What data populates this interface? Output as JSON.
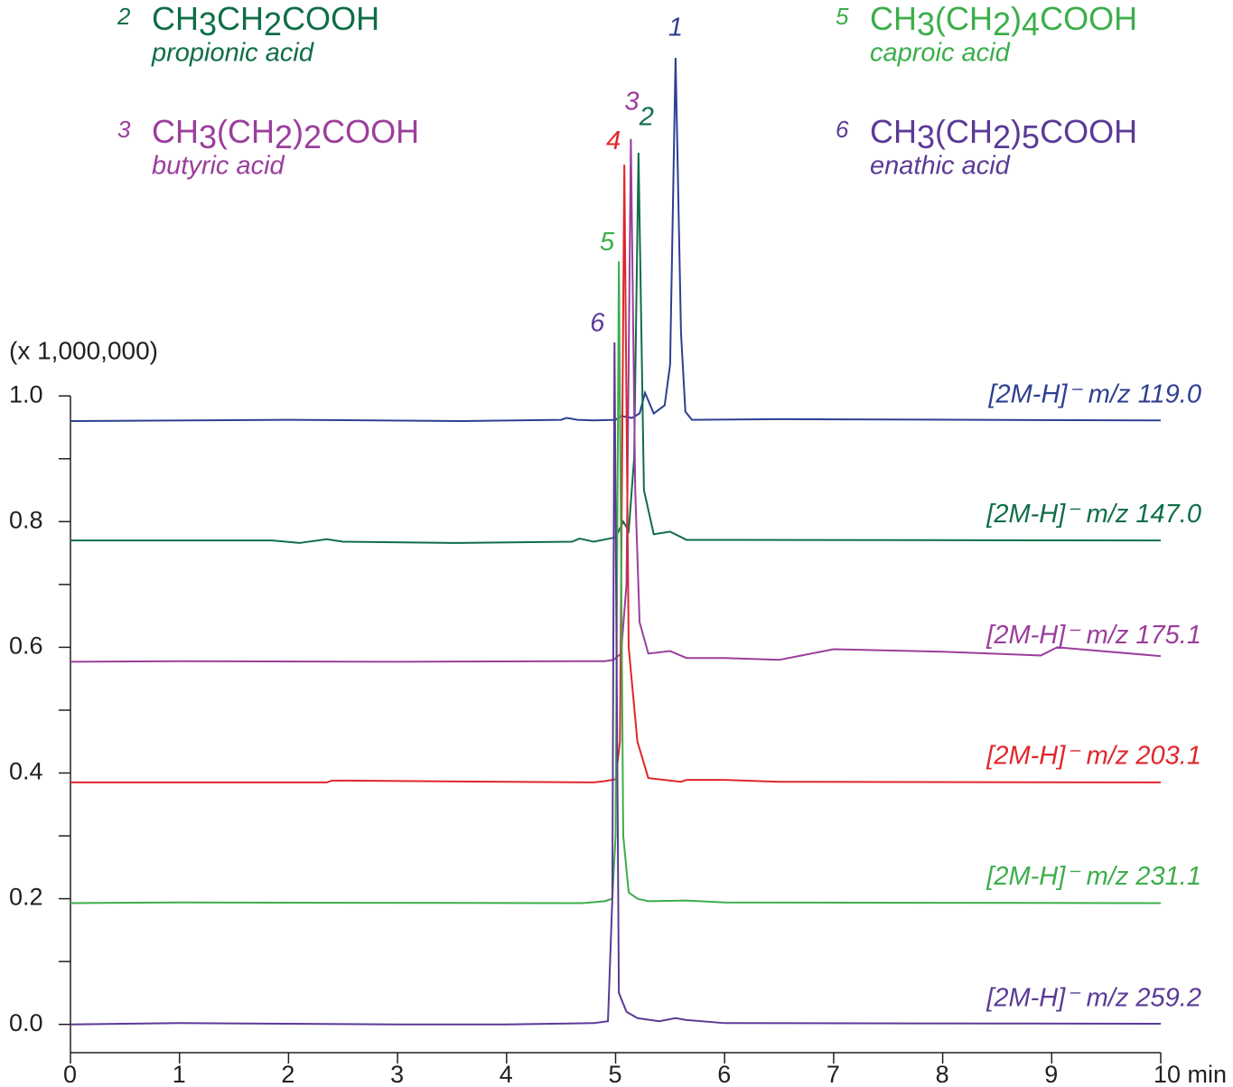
{
  "chart_data": {
    "type": "line",
    "y_label": "(x 1,000,000)",
    "xlim": [
      0,
      10
    ],
    "xticks": [
      0,
      1,
      2,
      3,
      4,
      5,
      6,
      7,
      8,
      9,
      {
        "value": 10,
        "label": "10 min"
      }
    ],
    "ylim": [
      -0.045,
      1.63
    ],
    "yticks": [
      {
        "value": 0,
        "label": "0.0"
      },
      0.2,
      0.4,
      0.6,
      0.8,
      {
        "value": 1,
        "label": "1.0"
      }
    ],
    "yticks_minor": [
      0.1,
      0.3,
      0.5,
      0.7,
      0.9
    ],
    "series": [
      {
        "name": "[2M-H]⁻ m/z 119.0",
        "peak_label": "1",
        "color": "#2e3f92",
        "x": [
          0,
          2,
          3.6,
          4.5,
          4.55,
          4.65,
          4.8,
          5.0,
          5.05,
          5.15,
          5.22,
          5.27,
          5.35,
          5.45,
          5.5,
          5.55,
          5.6,
          5.64,
          5.7,
          6.5,
          10
        ],
        "values": [
          0.96,
          0.962,
          0.96,
          0.962,
          0.965,
          0.962,
          0.961,
          0.962,
          0.968,
          0.965,
          0.972,
          1.005,
          0.972,
          0.985,
          1.05,
          1.538,
          1.1,
          0.975,
          0.962,
          0.963,
          0.961
        ]
      },
      {
        "name": "[2M-H]⁻ m/z 147.0",
        "peak_label": "2",
        "color": "#0f6e47",
        "x": [
          0,
          1.85,
          2.1,
          2.35,
          2.5,
          3.5,
          4.6,
          4.67,
          4.8,
          5.0,
          5.07,
          5.12,
          5.17,
          5.21,
          5.26,
          5.35,
          5.5,
          5.65,
          6,
          10
        ],
        "values": [
          0.77,
          0.77,
          0.766,
          0.772,
          0.768,
          0.766,
          0.768,
          0.773,
          0.768,
          0.775,
          0.8,
          0.785,
          0.9,
          1.387,
          0.85,
          0.78,
          0.784,
          0.771,
          0.771,
          0.77
        ]
      },
      {
        "name": "[2M-H]⁻ m/z 175.1",
        "peak_label": "3",
        "color": "#9b3e9c",
        "x": [
          0,
          1,
          3,
          4.9,
          4.98,
          5.05,
          5.1,
          5.14,
          5.18,
          5.22,
          5.3,
          5.5,
          5.65,
          6,
          6.5,
          7,
          8,
          8.9,
          9.05,
          10
        ],
        "values": [
          0.577,
          0.578,
          0.577,
          0.578,
          0.58,
          0.59,
          0.7,
          1.409,
          0.85,
          0.64,
          0.59,
          0.594,
          0.583,
          0.583,
          0.58,
          0.597,
          0.593,
          0.587,
          0.6,
          0.586
        ]
      },
      {
        "name": "[2M-H]⁻ m/z 203.1",
        "peak_label": "4",
        "color": "#e0262b",
        "x": [
          0,
          2.35,
          2.4,
          4.8,
          4.9,
          5.0,
          5.04,
          5.08,
          5.12,
          5.2,
          5.3,
          5.6,
          5.65,
          6,
          6.5,
          10
        ],
        "values": [
          0.385,
          0.385,
          0.388,
          0.385,
          0.387,
          0.39,
          0.45,
          1.368,
          0.6,
          0.45,
          0.392,
          0.386,
          0.389,
          0.389,
          0.386,
          0.385
        ]
      },
      {
        "name": "[2M-H]⁻ m/z 231.1",
        "peak_label": "5",
        "color": "#3cae4a",
        "x": [
          0,
          1,
          4.5,
          4.7,
          4.9,
          4.97,
          5.0,
          5.03,
          5.07,
          5.12,
          5.2,
          5.3,
          5.65,
          6,
          10
        ],
        "values": [
          0.193,
          0.194,
          0.193,
          0.193,
          0.196,
          0.2,
          0.3,
          1.214,
          0.3,
          0.21,
          0.2,
          0.196,
          0.197,
          0.194,
          0.193
        ]
      },
      {
        "name": "[2M-H]⁻ m/z 259.2",
        "peak_label": "6",
        "color": "#5b3a96",
        "x": [
          0,
          1,
          3,
          4,
          4.8,
          4.93,
          4.97,
          4.99,
          5.03,
          5.1,
          5.2,
          5.4,
          5.55,
          5.65,
          6,
          10
        ],
        "values": [
          0,
          0.002,
          0,
          0,
          0.002,
          0.005,
          0.2,
          1.085,
          0.05,
          0.02,
          0.01,
          0.005,
          0.01,
          0.007,
          0.002,
          0.001
        ]
      }
    ],
    "compounds": [
      {
        "number": "2",
        "formula": "CH3CH2COOH",
        "name": "propionic acid"
      },
      {
        "number": "3",
        "formula": "CH3(CH2)2COOH",
        "name": "butyric acid"
      },
      {
        "number": "5",
        "formula": "CH3(CH2)4COOH",
        "name": "caproic acid"
      },
      {
        "number": "6",
        "formula": "CH3(CH2)5COOH",
        "name": "enathic acid"
      }
    ]
  }
}
